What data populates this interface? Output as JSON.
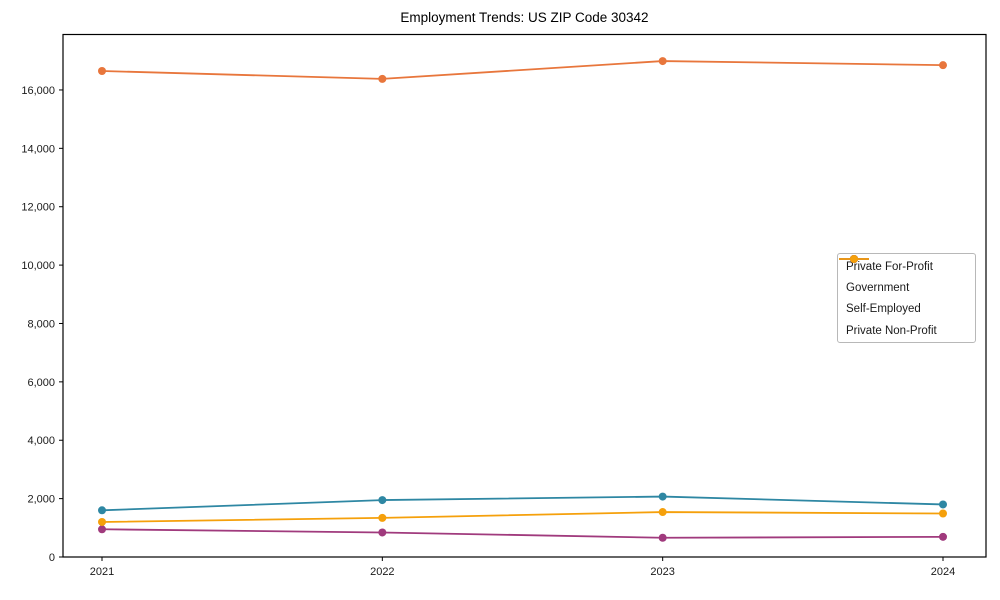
{
  "title": "Employment Trends: US ZIP Code 30342",
  "colors": {
    "axis": "#000000",
    "text": "#1a1a1a",
    "background": "#ffffff",
    "legend_border": "#b8b8b8"
  },
  "legend": {
    "position": "center right",
    "entries": [
      "Private For-Profit",
      "Government",
      "Self-Employed",
      "Private Non-Profit"
    ]
  },
  "chart_data": {
    "type": "line",
    "title": "Employment Trends: US ZIP Code 30342",
    "xlabel": "",
    "ylabel": "",
    "x": [
      "2021",
      "2022",
      "2023",
      "2024"
    ],
    "series": [
      {
        "name": "Private For-Profit",
        "color": "#e8763c",
        "values": [
          16650,
          16380,
          16990,
          16850
        ]
      },
      {
        "name": "Government",
        "color": "#2e87a3",
        "values": [
          1600,
          1950,
          2070,
          1800
        ]
      },
      {
        "name": "Self-Employed",
        "color": "#a03a7d",
        "values": [
          950,
          840,
          660,
          690
        ]
      },
      {
        "name": "Private Non-Profit",
        "color": "#f5a00b",
        "values": [
          1200,
          1340,
          1540,
          1490
        ]
      }
    ],
    "ylim": [
      0,
      17900
    ],
    "yticks": [
      0,
      2000,
      4000,
      6000,
      8000,
      10000,
      12000,
      14000,
      16000
    ],
    "grid": false,
    "legend_position": "center right",
    "marker": "circle",
    "line_width": 1.8,
    "marker_radius": 4
  }
}
